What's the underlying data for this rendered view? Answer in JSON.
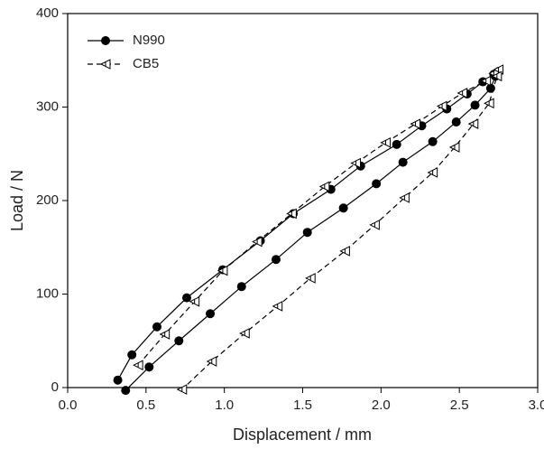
{
  "chart_data": {
    "type": "line",
    "xlabel": "Displacement / mm",
    "ylabel": "Load / N",
    "xlim": [
      0,
      3
    ],
    "ylim": [
      0,
      400
    ],
    "xticks": [
      {
        "value": 0,
        "label": "0.0"
      },
      0.5,
      {
        "value": 1,
        "label": "1.0"
      },
      1.5,
      {
        "value": 2,
        "label": "2.0"
      },
      2.5,
      {
        "value": 3,
        "label": "3.0"
      }
    ],
    "yticks": [
      0,
      100,
      200,
      300,
      400
    ],
    "legend": "upper left",
    "series": [
      {
        "name": "N990",
        "color": "#000000",
        "dash": "solid",
        "marker": "circle",
        "x": [
          0.32,
          0.41,
          0.57,
          0.76,
          0.99,
          1.23,
          1.44,
          1.68,
          1.87,
          2.1,
          2.26,
          2.42,
          2.55,
          2.65,
          2.72,
          2.75,
          2.73,
          2.7,
          2.6,
          2.48,
          2.33,
          2.14,
          1.97,
          1.76,
          1.53,
          1.33,
          1.11,
          0.91,
          0.71,
          0.52,
          0.37
        ],
        "values": [
          8,
          35,
          65,
          96,
          126,
          157,
          186,
          212,
          237,
          260,
          280,
          298,
          314,
          327,
          335,
          338,
          333,
          320,
          302,
          284,
          263,
          241,
          218,
          192,
          166,
          137,
          108,
          79,
          50,
          22,
          -3
        ]
      },
      {
        "name": "CB5",
        "color": "#000000",
        "dash": "dashed",
        "marker": "triangle-left",
        "x": [
          0.45,
          0.62,
          0.81,
          0.99,
          1.21,
          1.43,
          1.64,
          1.84,
          2.03,
          2.22,
          2.39,
          2.52,
          2.67,
          2.72,
          2.75,
          2.74,
          2.69,
          2.59,
          2.47,
          2.33,
          2.15,
          1.96,
          1.77,
          1.55,
          1.34,
          1.13,
          0.92,
          0.73
        ],
        "values": [
          24,
          57,
          92,
          125,
          156,
          186,
          215,
          240,
          262,
          282,
          301,
          315,
          328,
          336,
          340,
          333,
          304,
          282,
          257,
          230,
          203,
          174,
          146,
          117,
          87,
          58,
          28,
          -2
        ]
      }
    ]
  }
}
